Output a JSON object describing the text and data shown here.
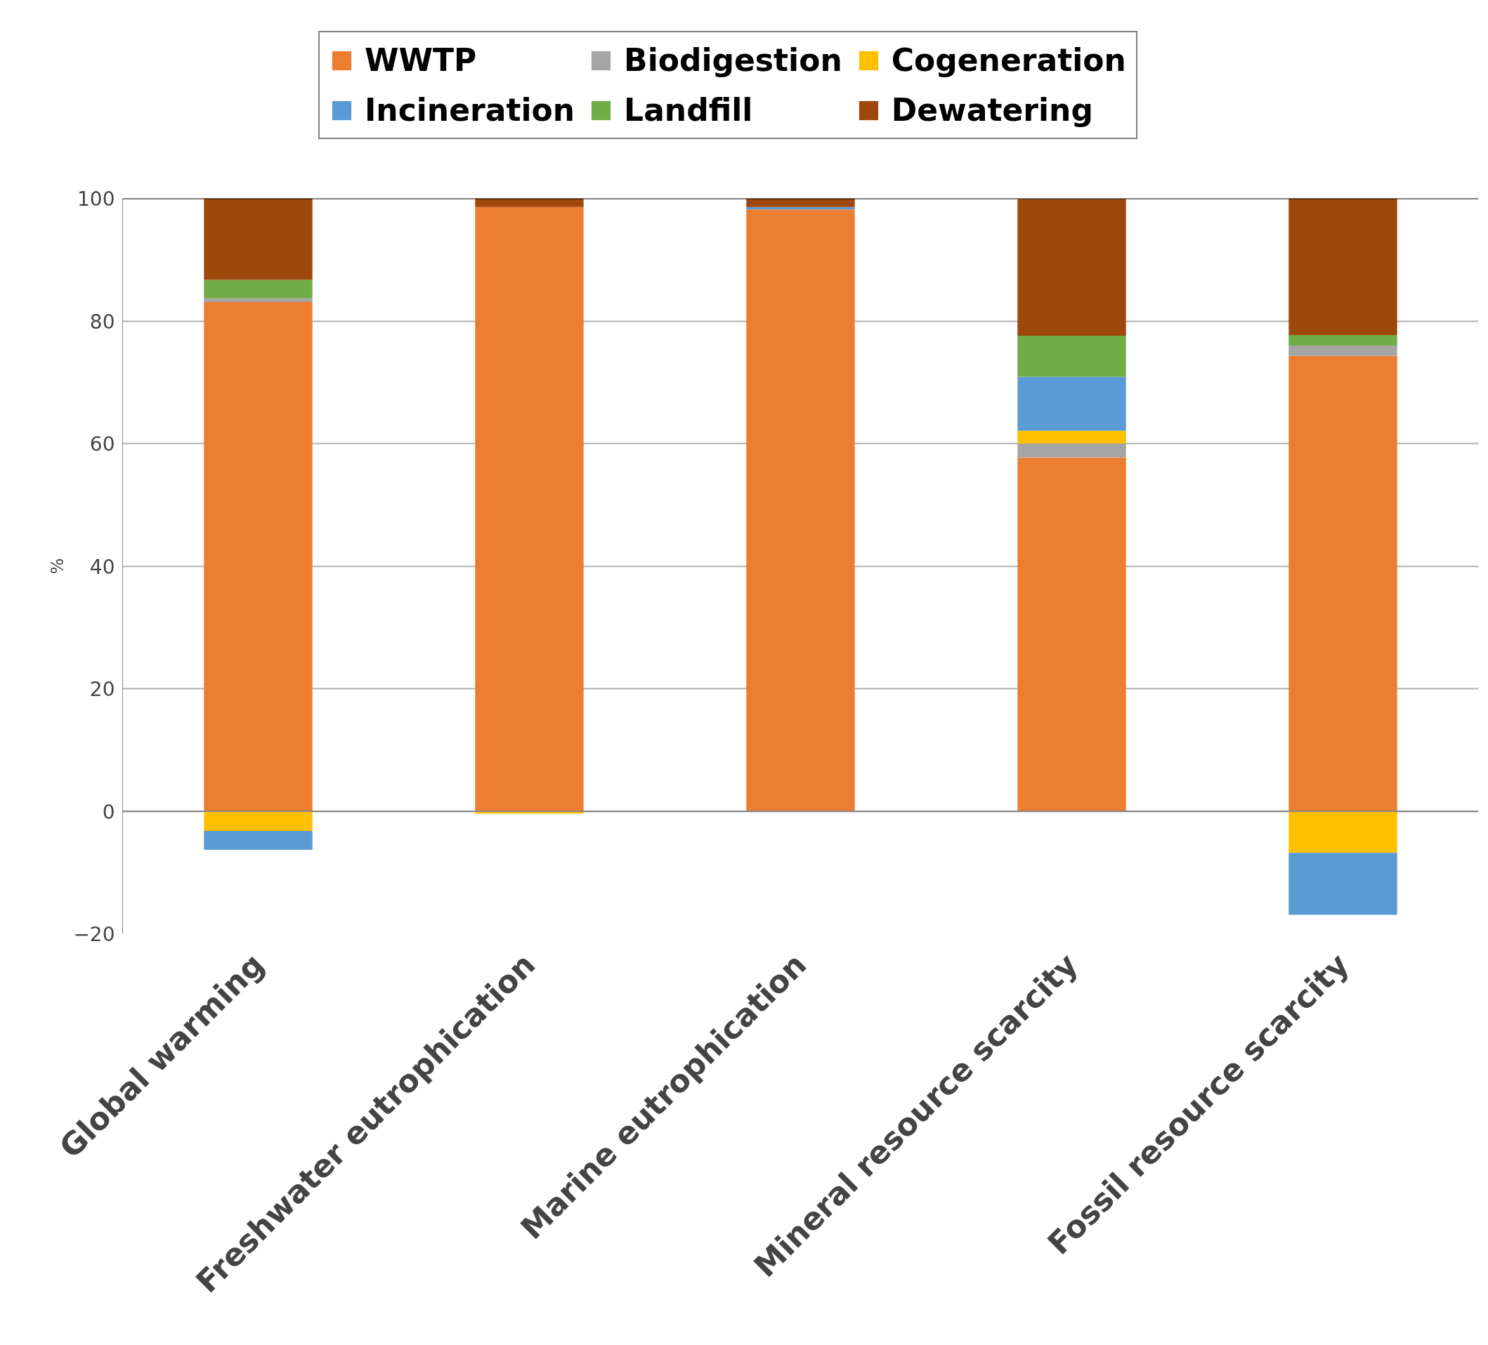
{
  "chart_data": {
    "type": "bar",
    "stacked": true,
    "ylabel": "%",
    "categories": [
      "Global warming",
      "Freshwater eutrophication",
      "Marine eutrophication",
      "Mineral resource scarcity",
      "Fossil resource scarcity"
    ],
    "series": [
      {
        "name": "WWTP",
        "color": "#ed7d31",
        "values": [
          83.1,
          98.6,
          98.2,
          57.7,
          74.3
        ]
      },
      {
        "name": "Biodigestion",
        "color": "#a5a5a5",
        "values": [
          0.6,
          null,
          null,
          2.3,
          1.7
        ]
      },
      {
        "name": "Cogeneration",
        "color": "#ffc000",
        "values": [
          -3.2,
          -0.4,
          null,
          2.1,
          -6.8
        ]
      },
      {
        "name": "Incineration",
        "color": "#5b9bd5",
        "values": [
          -3.1,
          null,
          0.4,
          8.8,
          -10.1
        ]
      },
      {
        "name": "Landfill",
        "color": "#70ad47",
        "values": [
          3.0,
          null,
          null,
          6.7,
          1.7
        ]
      },
      {
        "name": "Dewatering",
        "color": "#9e480e",
        "values": [
          13.3,
          1.4,
          1.4,
          22.3,
          22.3
        ]
      }
    ],
    "ylim": [
      -20,
      100
    ],
    "yticks": [
      -20,
      0,
      20,
      40,
      60,
      80,
      100
    ],
    "grid": "y",
    "legend": "top"
  }
}
